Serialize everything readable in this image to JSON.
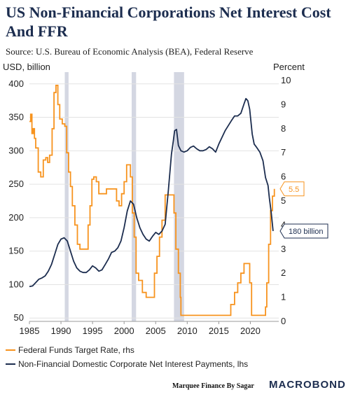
{
  "header": {
    "title": "US Non-Financial Corporations Net Interest Cost And FFR",
    "source": "Source: U.S. Bureau of Economic Analysis (BEA), Federal Reserve"
  },
  "footer": {
    "credit": "Marquee Finance By Sagar",
    "brand": "MACROBOND"
  },
  "colors": {
    "ffr": "#f7931e",
    "interest": "#1c2d4f",
    "recession": "#d4d7e2",
    "grid": "#e3e3e3"
  },
  "chart_data": {
    "type": "line",
    "left_axis_label": "USD, billion",
    "right_axis_label": "Percent",
    "xlim": [
      1985,
      2024.5
    ],
    "left_ylim": [
      45,
      405
    ],
    "right_ylim": [
      0,
      10
    ],
    "x_ticks": [
      1985,
      1990,
      1995,
      2000,
      2005,
      2010,
      2015,
      2020
    ],
    "left_ticks": [
      50,
      100,
      150,
      200,
      250,
      300,
      350,
      400
    ],
    "right_ticks": [
      0,
      1,
      2,
      3,
      4,
      5,
      6,
      7,
      8,
      9,
      10
    ],
    "recessions": [
      [
        1990.6,
        1991.2
      ],
      [
        2001.2,
        2001.9
      ],
      [
        2007.9,
        2009.5
      ]
    ],
    "series": [
      {
        "name": "Federal Funds Target Rate, rhs",
        "axis": "right",
        "x": [
          1985.0,
          1985.2,
          1985.4,
          1985.6,
          1985.8,
          1986.0,
          1986.4,
          1986.8,
          1987.2,
          1987.6,
          1987.9,
          1988.2,
          1988.6,
          1988.9,
          1989.2,
          1989.5,
          1989.8,
          1990.2,
          1990.6,
          1990.9,
          1991.2,
          1991.5,
          1991.8,
          1992.2,
          1992.6,
          1993.0,
          1994.0,
          1994.3,
          1994.6,
          1994.9,
          1995.2,
          1995.6,
          1996.0,
          1997.2,
          1997.6,
          1998.8,
          1999.2,
          1999.6,
          2000.0,
          2000.4,
          2000.8,
          2001.0,
          2001.3,
          2001.6,
          2001.9,
          2002.3,
          2002.9,
          2003.5,
          2004.4,
          2004.8,
          2005.2,
          2005.6,
          2006.0,
          2006.5,
          2007.6,
          2007.9,
          2008.2,
          2008.6,
          2008.9,
          2009.0,
          2015.9,
          2016.9,
          2017.5,
          2018.0,
          2018.5,
          2019.0,
          2019.5,
          2019.9,
          2020.2,
          2022.2,
          2022.4,
          2022.6,
          2022.9,
          2023.2,
          2023.5,
          2023.8
        ],
        "y": [
          8.3,
          8.6,
          7.8,
          8.0,
          7.6,
          7.2,
          6.2,
          6.0,
          6.7,
          6.8,
          6.6,
          6.9,
          8.0,
          9.5,
          9.8,
          9.0,
          8.4,
          8.2,
          8.1,
          7.0,
          6.2,
          5.6,
          4.8,
          4.0,
          3.2,
          3.0,
          3.0,
          4.0,
          4.8,
          5.9,
          6.0,
          5.8,
          5.3,
          5.5,
          5.5,
          5.0,
          4.8,
          5.3,
          5.8,
          6.5,
          6.5,
          6.0,
          4.5,
          3.5,
          2.0,
          1.7,
          1.2,
          1.0,
          1.0,
          2.0,
          2.7,
          3.5,
          4.2,
          5.25,
          5.25,
          4.5,
          3.0,
          2.0,
          1.0,
          0.25,
          0.25,
          0.7,
          1.2,
          1.6,
          2.0,
          2.4,
          2.4,
          1.6,
          0.25,
          0.25,
          0.6,
          1.6,
          3.2,
          4.6,
          5.2,
          5.5
        ]
      },
      {
        "name": "Non-Financial Domestic Corporate Net Interest Payments, lhs",
        "axis": "left",
        "x": [
          1985.0,
          1985.5,
          1986.0,
          1986.5,
          1987.0,
          1987.5,
          1988.0,
          1988.5,
          1989.0,
          1989.5,
          1990.0,
          1990.5,
          1991.0,
          1991.5,
          1992.0,
          1992.5,
          1993.0,
          1993.5,
          1994.0,
          1994.5,
          1995.0,
          1995.5,
          1996.0,
          1996.5,
          1997.0,
          1997.5,
          1998.0,
          1998.5,
          1999.0,
          1999.5,
          2000.0,
          2000.5,
          2001.0,
          2001.5,
          2002.0,
          2002.5,
          2003.0,
          2003.5,
          2004.0,
          2004.5,
          2005.0,
          2005.5,
          2006.0,
          2006.5,
          2007.0,
          2007.5,
          2007.8,
          2008.0,
          2008.3,
          2008.6,
          2009.0,
          2009.5,
          2010.0,
          2010.5,
          2011.0,
          2011.5,
          2012.0,
          2012.5,
          2013.0,
          2013.5,
          2014.0,
          2014.5,
          2015.0,
          2015.5,
          2016.0,
          2017.0,
          2017.5,
          2018.0,
          2018.5,
          2019.0,
          2019.3,
          2019.6,
          2019.9,
          2020.3,
          2020.6,
          2021.0,
          2021.5,
          2022.0,
          2022.4,
          2022.8,
          2023.0,
          2023.3,
          2023.6
        ],
        "y": [
          97,
          98,
          103,
          108,
          110,
          113,
          120,
          130,
          145,
          160,
          168,
          170,
          165,
          150,
          135,
          125,
          120,
          118,
          118,
          122,
          128,
          125,
          120,
          122,
          130,
          138,
          148,
          150,
          155,
          165,
          185,
          210,
          225,
          220,
          200,
          185,
          175,
          168,
          165,
          172,
          178,
          175,
          180,
          190,
          240,
          295,
          315,
          330,
          332,
          308,
          300,
          298,
          300,
          305,
          307,
          303,
          300,
          300,
          302,
          306,
          303,
          298,
          310,
          320,
          330,
          345,
          352,
          352,
          356,
          370,
          378,
          375,
          362,
          325,
          310,
          305,
          298,
          285,
          260,
          248,
          230,
          208,
          180
        ]
      }
    ],
    "end_labels": {
      "ffr": "5.5",
      "interest": "180 billion"
    },
    "legend": [
      {
        "label": "Federal Funds Target Rate, rhs",
        "color": "#f7931e"
      },
      {
        "label": "Non-Financial Domestic Corporate Net Interest Payments, lhs",
        "color": "#1c2d4f"
      }
    ]
  }
}
